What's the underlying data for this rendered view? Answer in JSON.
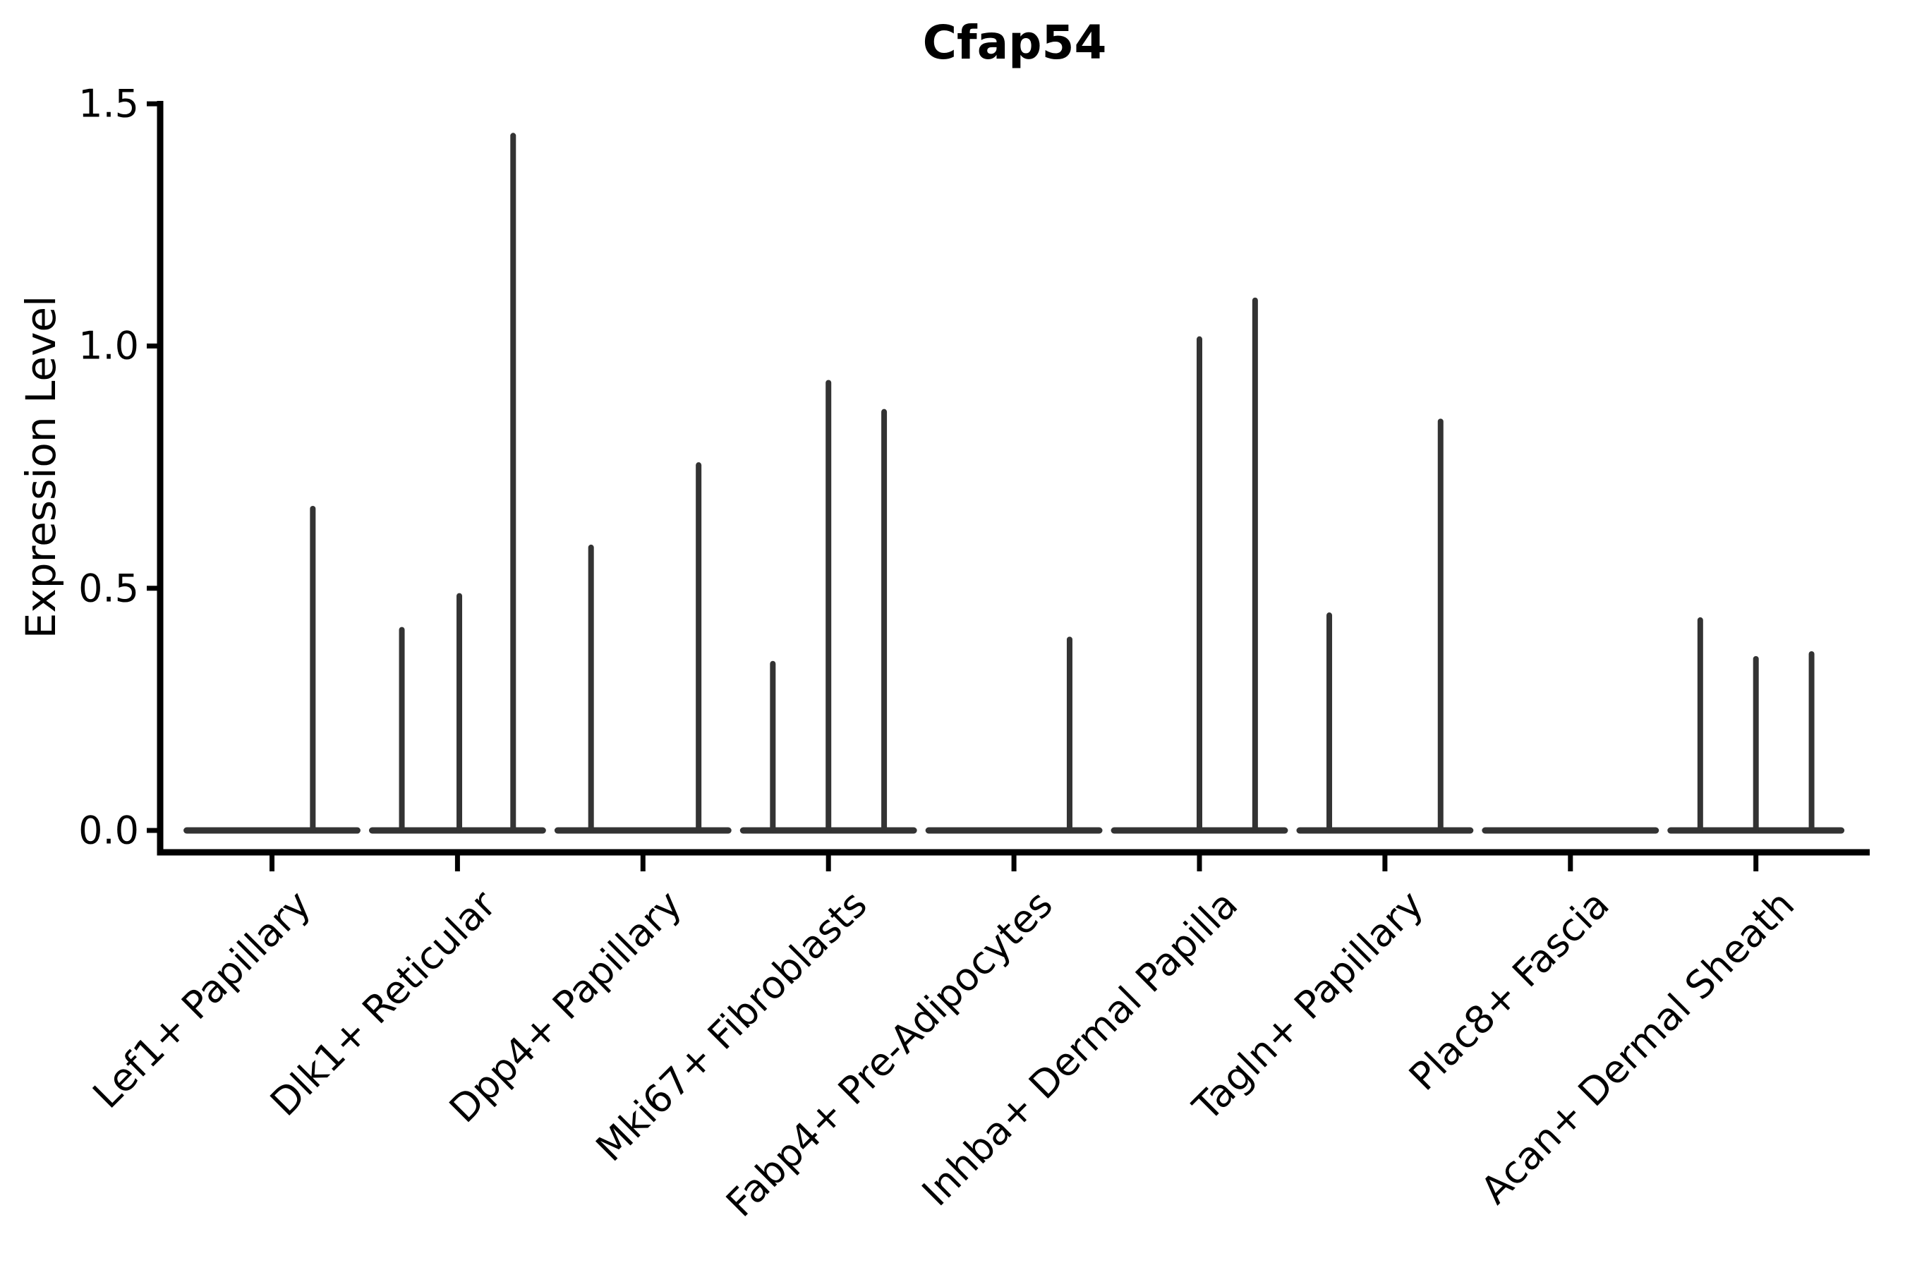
{
  "chart_data": {
    "type": "violin",
    "title": "Cfap54",
    "xlabel": "",
    "ylabel": "Expression Level",
    "ylim": [
      0.0,
      1.5
    ],
    "yticks": [
      0.0,
      0.5,
      1.0,
      1.5
    ],
    "ytick_labels": [
      "0.0",
      "0.5",
      "1.0",
      "1.5"
    ],
    "grid": false,
    "legend": "none",
    "colors": {
      "violin_line": "#333333",
      "axis": "#000000",
      "text": "#000000",
      "background": "#ffffff"
    },
    "baseline_halfwidth": 0.46,
    "categories": [
      {
        "label": "Lef1+ Papillary",
        "spikes": [
          {
            "offset": 0.22,
            "max": 0.67
          }
        ]
      },
      {
        "label": "Dlk1+ Reticular",
        "spikes": [
          {
            "offset": -0.3,
            "max": 0.42
          },
          {
            "offset": 0.01,
            "max": 0.49
          },
          {
            "offset": 0.3,
            "max": 1.44
          }
        ]
      },
      {
        "label": "Dpp4+ Papillary",
        "spikes": [
          {
            "offset": -0.28,
            "max": 0.59
          },
          {
            "offset": 0.3,
            "max": 0.76
          }
        ]
      },
      {
        "label": "Mki67+ Fibroblasts",
        "spikes": [
          {
            "offset": -0.3,
            "max": 0.35
          },
          {
            "offset": 0.0,
            "max": 0.93
          },
          {
            "offset": 0.3,
            "max": 0.87
          }
        ]
      },
      {
        "label": "Fabp4+ Pre-Adipocytes",
        "spikes": [
          {
            "offset": 0.3,
            "max": 0.4
          }
        ]
      },
      {
        "label": "Inhba+ Dermal Papilla",
        "spikes": [
          {
            "offset": 0.0,
            "max": 1.02
          },
          {
            "offset": 0.3,
            "max": 1.1
          }
        ]
      },
      {
        "label": "Tagln+ Papillary",
        "spikes": [
          {
            "offset": -0.3,
            "max": 0.45
          },
          {
            "offset": 0.3,
            "max": 0.85
          }
        ]
      },
      {
        "label": "Plac8+ Fascia",
        "spikes": []
      },
      {
        "label": "Acan+ Dermal Sheath",
        "spikes": [
          {
            "offset": -0.3,
            "max": 0.44
          },
          {
            "offset": 0.0,
            "max": 0.36
          },
          {
            "offset": 0.3,
            "max": 0.37
          }
        ]
      }
    ]
  }
}
